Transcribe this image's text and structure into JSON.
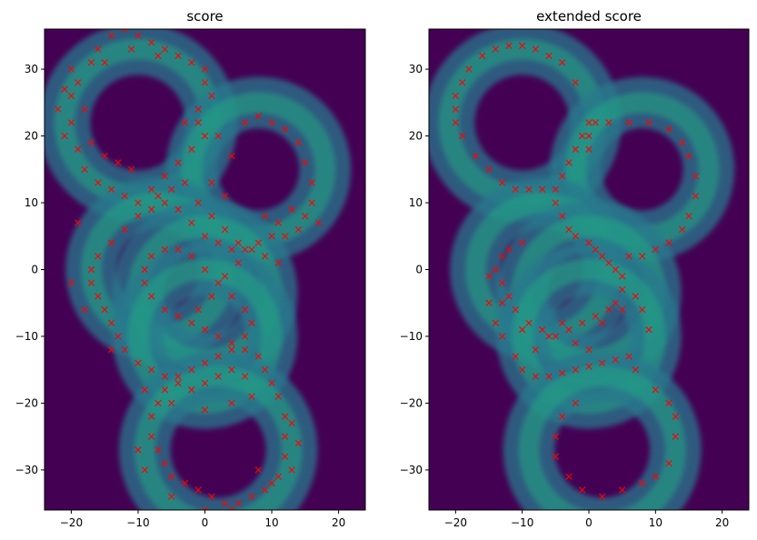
{
  "chart_data": [
    {
      "type": "heatmap",
      "title": "score",
      "xlim": [
        -24,
        24
      ],
      "ylim": [
        -36,
        36
      ],
      "xticks": [
        -20,
        -10,
        0,
        10,
        20
      ],
      "yticks": [
        -30,
        -20,
        -10,
        0,
        10,
        20,
        30
      ],
      "grid": false,
      "colormap": "viridis",
      "background_color": "#440154",
      "marker_color": "#ff0000",
      "marker": "x",
      "rings": [
        {
          "cx": -10,
          "cy": 22,
          "r": 11
        },
        {
          "cx": 8,
          "cy": 15,
          "r": 10
        },
        {
          "cx": -7,
          "cy": 0,
          "r": 10
        },
        {
          "cx": 0,
          "cy": -3.5,
          "r": 10
        },
        {
          "cx": 0,
          "cy": -10,
          "r": 10
        },
        {
          "cx": 2,
          "cy": -27,
          "r": 11
        }
      ],
      "ring_width": 3.5,
      "markers": [
        [
          -20,
          30
        ],
        [
          -19,
          28
        ],
        [
          -18,
          24
        ],
        [
          -17,
          31
        ],
        [
          -16,
          33
        ],
        [
          -14,
          35
        ],
        [
          -12,
          36
        ],
        [
          -10,
          35
        ],
        [
          -8,
          34
        ],
        [
          -6,
          33
        ],
        [
          -4,
          32
        ],
        [
          -2,
          31
        ],
        [
          0,
          30
        ],
        [
          -20,
          22
        ],
        [
          -21,
          20
        ],
        [
          -19,
          18
        ],
        [
          -18,
          15
        ],
        [
          -16,
          13
        ],
        [
          -14,
          12
        ],
        [
          -12,
          11
        ],
        [
          -10,
          10
        ],
        [
          -8,
          12
        ],
        [
          -6,
          14
        ],
        [
          -4,
          16
        ],
        [
          -2,
          18
        ],
        [
          0,
          20
        ],
        [
          -3,
          22
        ],
        [
          -1,
          24
        ],
        [
          2,
          20
        ],
        [
          4,
          17
        ],
        [
          6,
          22
        ],
        [
          8,
          23
        ],
        [
          10,
          22
        ],
        [
          12,
          21
        ],
        [
          14,
          19
        ],
        [
          15,
          16
        ],
        [
          16,
          13
        ],
        [
          16,
          10
        ],
        [
          15,
          8
        ],
        [
          14,
          6
        ],
        [
          12,
          5
        ],
        [
          10,
          5
        ],
        [
          8,
          4
        ],
        [
          6,
          3
        ],
        [
          4,
          3
        ],
        [
          2,
          4
        ],
        [
          0,
          5
        ],
        [
          -2,
          7
        ],
        [
          -4,
          9
        ],
        [
          -6,
          10
        ],
        [
          -8,
          9
        ],
        [
          -10,
          8
        ],
        [
          -12,
          6
        ],
        [
          -14,
          4
        ],
        [
          -16,
          2
        ],
        [
          -17,
          0
        ],
        [
          -17,
          -2
        ],
        [
          -16,
          -4
        ],
        [
          -15,
          -6
        ],
        [
          -14,
          -8
        ],
        [
          -13,
          -10
        ],
        [
          -12,
          -12
        ],
        [
          -10,
          -14
        ],
        [
          -8,
          -15
        ],
        [
          -6,
          -16
        ],
        [
          -4,
          -16
        ],
        [
          -2,
          -15
        ],
        [
          0,
          -14
        ],
        [
          2,
          -13
        ],
        [
          4,
          -12
        ],
        [
          6,
          -12
        ],
        [
          8,
          -13
        ],
        [
          9,
          -15
        ],
        [
          10,
          -17
        ],
        [
          11,
          -19
        ],
        [
          12,
          -22
        ],
        [
          12,
          -25
        ],
        [
          12,
          -28
        ],
        [
          11,
          -31
        ],
        [
          9,
          -33
        ],
        [
          7,
          -34
        ],
        [
          5,
          -35
        ],
        [
          3,
          -35
        ],
        [
          1,
          -34
        ],
        [
          -1,
          -33
        ],
        [
          -3,
          -32
        ],
        [
          -5,
          -31
        ],
        [
          -6,
          -29
        ],
        [
          -7,
          -27
        ],
        [
          -8,
          -25
        ],
        [
          -8,
          -22
        ],
        [
          -7,
          -20
        ],
        [
          -6,
          -18
        ],
        [
          -4,
          -17
        ],
        [
          -2,
          -18
        ],
        [
          0,
          -17
        ],
        [
          2,
          -16
        ],
        [
          4,
          -15
        ],
        [
          6,
          -16
        ],
        [
          -2,
          -8
        ],
        [
          -4,
          -7
        ],
        [
          -6,
          -6
        ],
        [
          -8,
          -4
        ],
        [
          -9,
          -2
        ],
        [
          -9,
          0
        ],
        [
          -8,
          2
        ],
        [
          -6,
          3
        ],
        [
          -4,
          3
        ],
        [
          -2,
          2
        ],
        [
          0,
          0
        ],
        [
          2,
          -2
        ],
        [
          4,
          -4
        ],
        [
          6,
          -6
        ],
        [
          7,
          -8
        ],
        [
          6,
          -10
        ],
        [
          4,
          -11
        ],
        [
          2,
          -10
        ],
        [
          0,
          -9
        ],
        [
          -1,
          -6
        ],
        [
          1,
          -4
        ],
        [
          3,
          -1
        ],
        [
          5,
          1
        ],
        [
          7,
          3
        ],
        [
          9,
          2
        ],
        [
          11,
          1
        ],
        [
          -11,
          15
        ],
        [
          -13,
          16
        ],
        [
          -15,
          17
        ],
        [
          -17,
          19
        ],
        [
          1,
          13
        ],
        [
          3,
          11
        ],
        [
          -3,
          13
        ],
        [
          -5,
          12
        ],
        [
          -7,
          11
        ],
        [
          -1,
          10
        ],
        [
          1,
          8
        ],
        [
          3,
          6
        ],
        [
          5,
          4
        ],
        [
          -20,
          26
        ],
        [
          -22,
          24
        ],
        [
          -21,
          27
        ],
        [
          -15,
          31
        ],
        [
          -11,
          33
        ],
        [
          -7,
          32
        ],
        [
          0,
          28
        ],
        [
          1,
          26
        ],
        [
          -1,
          22
        ],
        [
          13,
          9
        ],
        [
          11,
          7
        ],
        [
          9,
          8
        ],
        [
          17,
          7
        ],
        [
          -19,
          7
        ],
        [
          -20,
          -2
        ],
        [
          -18,
          -6
        ],
        [
          -14,
          -12
        ],
        [
          -9,
          -18
        ],
        [
          -5,
          -20
        ],
        [
          0,
          -21
        ],
        [
          4,
          -20
        ],
        [
          7,
          -19
        ],
        [
          13,
          -23
        ],
        [
          14,
          -26
        ],
        [
          13,
          -30
        ],
        [
          10,
          -32
        ],
        [
          -10,
          -27
        ],
        [
          -9,
          -30
        ],
        [
          -5,
          -34
        ],
        [
          0,
          -36
        ],
        [
          4,
          -36
        ],
        [
          8,
          -30
        ]
      ]
    },
    {
      "type": "heatmap",
      "title": "extended score",
      "xlim": [
        -24,
        24
      ],
      "ylim": [
        -36,
        36
      ],
      "xticks": [
        -20,
        -10,
        0,
        10,
        20
      ],
      "yticks": [
        -30,
        -20,
        -10,
        0,
        10,
        20,
        30
      ],
      "grid": false,
      "colormap": "viridis",
      "background_color": "#440154",
      "marker_color": "#ff0000",
      "marker": "x",
      "rings": [
        {
          "cx": -10,
          "cy": 22,
          "r": 11
        },
        {
          "cx": 8,
          "cy": 15,
          "r": 10
        },
        {
          "cx": -7,
          "cy": 0,
          "r": 10
        },
        {
          "cx": 0,
          "cy": -3.5,
          "r": 10
        },
        {
          "cx": 0,
          "cy": -10,
          "r": 10
        },
        {
          "cx": 2,
          "cy": -27,
          "r": 11
        }
      ],
      "ring_width": 3.5,
      "markers": [
        [
          -20,
          24
        ],
        [
          -20,
          26
        ],
        [
          -19,
          28
        ],
        [
          -18,
          30
        ],
        [
          -16,
          32
        ],
        [
          -14,
          33
        ],
        [
          -12,
          33.5
        ],
        [
          -10,
          33.5
        ],
        [
          -8,
          33
        ],
        [
          -6,
          32
        ],
        [
          -4,
          31
        ],
        [
          -2,
          28
        ],
        [
          -20,
          22
        ],
        [
          -19,
          20
        ],
        [
          -17,
          17
        ],
        [
          -15,
          15
        ],
        [
          -13,
          13
        ],
        [
          -11,
          12
        ],
        [
          -9,
          12
        ],
        [
          -7,
          12
        ],
        [
          -5,
          12
        ],
        [
          -4,
          14
        ],
        [
          -3,
          16
        ],
        [
          -2,
          18
        ],
        [
          -1,
          20
        ],
        [
          0,
          22
        ],
        [
          0,
          20
        ],
        [
          0,
          18
        ],
        [
          1,
          22
        ],
        [
          3,
          22
        ],
        [
          6,
          22
        ],
        [
          9,
          22
        ],
        [
          12,
          21
        ],
        [
          14,
          19
        ],
        [
          15,
          17
        ],
        [
          16,
          14
        ],
        [
          16,
          11
        ],
        [
          15,
          8
        ],
        [
          14,
          6
        ],
        [
          12,
          4
        ],
        [
          10,
          3
        ],
        [
          8,
          2
        ],
        [
          6,
          2
        ],
        [
          -5,
          10
        ],
        [
          -4,
          8
        ],
        [
          -3,
          6
        ],
        [
          -2,
          5
        ],
        [
          0,
          4
        ],
        [
          1,
          3
        ],
        [
          2,
          2
        ],
        [
          3,
          1
        ],
        [
          4,
          0
        ],
        [
          5,
          -1
        ],
        [
          5,
          -3
        ],
        [
          4,
          -5
        ],
        [
          3,
          -6
        ],
        [
          1,
          -7
        ],
        [
          -1,
          -8
        ],
        [
          -3,
          -9
        ],
        [
          -5,
          -10
        ],
        [
          -7,
          -9
        ],
        [
          -9,
          -8
        ],
        [
          -11,
          -6
        ],
        [
          -12,
          -4
        ],
        [
          -13,
          -2
        ],
        [
          -14,
          0
        ],
        [
          -13,
          2
        ],
        [
          -12,
          3
        ],
        [
          -10,
          4
        ],
        [
          -15,
          -5
        ],
        [
          -14,
          -8
        ],
        [
          -13,
          -10
        ],
        [
          -11,
          -13
        ],
        [
          -10,
          -15
        ],
        [
          -8,
          -16
        ],
        [
          -6,
          -16
        ],
        [
          -4,
          -15.5
        ],
        [
          -2,
          -15
        ],
        [
          0,
          -14.5
        ],
        [
          2,
          -14
        ],
        [
          4,
          -13.5
        ],
        [
          6,
          -13
        ],
        [
          7,
          -15
        ],
        [
          -2,
          -20
        ],
        [
          -4,
          -22
        ],
        [
          -5,
          -25
        ],
        [
          -5,
          -28
        ],
        [
          -3,
          -31
        ],
        [
          -1,
          -33
        ],
        [
          2,
          -34
        ],
        [
          5,
          -33
        ],
        [
          8,
          -32
        ],
        [
          10,
          -31
        ],
        [
          12,
          -29
        ],
        [
          13,
          -25
        ],
        [
          13,
          -22
        ],
        [
          12,
          -20
        ],
        [
          10,
          -18
        ],
        [
          -8,
          -12
        ],
        [
          -6,
          -10
        ],
        [
          -4,
          -8
        ],
        [
          -2,
          -11
        ],
        [
          0,
          -12
        ],
        [
          2,
          -8
        ],
        [
          5,
          -6
        ],
        [
          7,
          -4
        ],
        [
          8,
          -6
        ],
        [
          9,
          -9
        ],
        [
          -15,
          -1
        ],
        [
          -13,
          -5
        ],
        [
          -10,
          -9
        ]
      ]
    }
  ]
}
